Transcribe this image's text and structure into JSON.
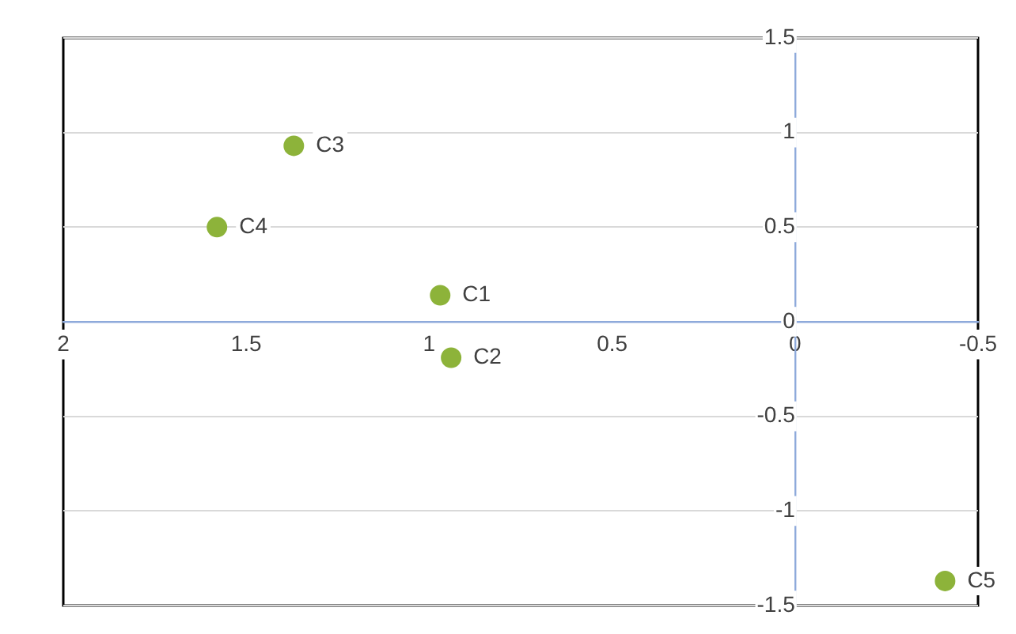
{
  "chart_data": {
    "type": "scatter",
    "x": [
      0.97,
      0.94,
      1.37,
      1.58,
      -0.41
    ],
    "series": [
      {
        "color": "#8db33a",
        "values": [
          0.14,
          -0.19,
          0.93,
          0.5,
          -1.37
        ]
      }
    ],
    "xlim": [
      2,
      -0.5
    ],
    "xticks": [
      2,
      1.5,
      1,
      0.5,
      0,
      -0.5
    ],
    "ylim": [
      -1.5,
      1.5
    ],
    "yticks": [
      -1.5,
      -1,
      -0.5,
      0,
      0.5,
      1,
      1.5
    ],
    "annotations": [
      {
        "text": "C1",
        "x": 0.97,
        "y": 0.14
      },
      {
        "text": "C2",
        "x": 0.94,
        "y": -0.19
      },
      {
        "text": "C3",
        "x": 1.37,
        "y": 0.93
      },
      {
        "text": "C4",
        "x": 1.58,
        "y": 0.5
      },
      {
        "text": "C5",
        "x": -0.41,
        "y": -1.37
      }
    ],
    "grid": "y",
    "marker": "circle",
    "legend": false
  }
}
